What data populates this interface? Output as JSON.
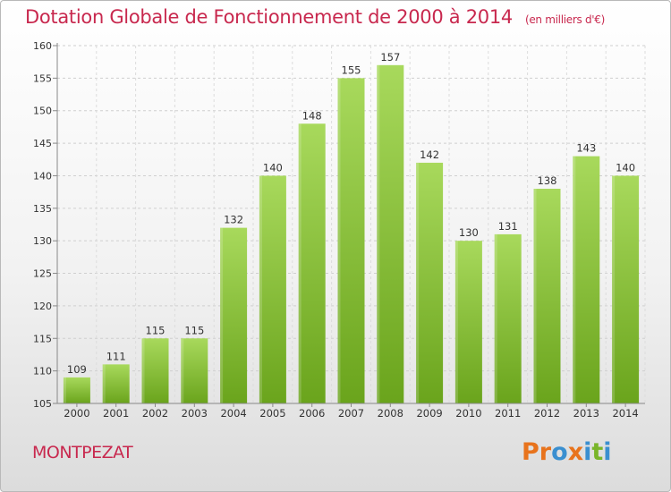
{
  "header": {
    "title": "Dotation Globale de Fonctionnement de 2000 à 2014",
    "subtitle": "(en milliers d'€)"
  },
  "footer": {
    "commune": "MONTPEZAT",
    "logo": "Proxiti"
  },
  "colors": {
    "title": "#c8284e",
    "bar_light": "#a8d95c",
    "bar_dark": "#6aa41c",
    "logo_letters": [
      "#e8731c",
      "#e8731c",
      "#3a8fd0",
      "#e8731c",
      "#3a8fd0",
      "#7ab52a",
      "#3a8fd0"
    ]
  },
  "chart_data": {
    "type": "bar",
    "title": "Dotation Globale de Fonctionnement de 2000 à 2014",
    "subtitle": "(en milliers d'€)",
    "categories": [
      "2000",
      "2001",
      "2002",
      "2003",
      "2004",
      "2005",
      "2006",
      "2007",
      "2008",
      "2009",
      "2010",
      "2011",
      "2012",
      "2013",
      "2014"
    ],
    "values": [
      109,
      111,
      115,
      115,
      132,
      140,
      148,
      155,
      157,
      142,
      130,
      131,
      138,
      143,
      140
    ],
    "xlabel": "",
    "ylabel": "",
    "ylim": [
      105,
      160
    ],
    "yticks": [
      105,
      110,
      115,
      120,
      125,
      130,
      135,
      140,
      145,
      150,
      155,
      160
    ],
    "grid": true,
    "data_labels": true
  }
}
